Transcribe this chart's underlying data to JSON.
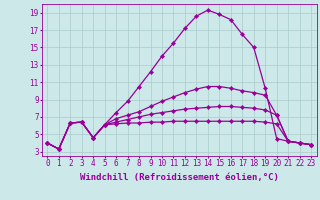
{
  "background_color": "#cce8e8",
  "grid_color": "#aacccc",
  "line_color": "#990099",
  "marker": "D",
  "markersize": 2.2,
  "linewidth": 0.9,
  "xlabel": "Windchill (Refroidissement éolien,°C)",
  "xlabel_fontsize": 6.5,
  "tick_fontsize": 5.5,
  "ylabel_ticks": [
    3,
    5,
    7,
    9,
    11,
    13,
    15,
    17,
    19
  ],
  "xlabel_ticks": [
    0,
    1,
    2,
    3,
    4,
    5,
    6,
    7,
    8,
    9,
    10,
    11,
    12,
    13,
    14,
    15,
    16,
    17,
    18,
    19,
    20,
    21,
    22,
    23
  ],
  "ylim": [
    2.5,
    20.0
  ],
  "xlim": [
    -0.5,
    23.5
  ],
  "lines": [
    [
      4.0,
      3.3,
      6.3,
      6.4,
      4.6,
      6.1,
      7.5,
      8.8,
      10.5,
      12.2,
      14.0,
      15.5,
      17.2,
      18.6,
      19.3,
      18.8,
      18.2,
      16.5,
      15.0,
      10.3,
      4.5,
      4.2,
      4.0,
      3.8
    ],
    [
      4.0,
      3.3,
      6.3,
      6.4,
      4.6,
      6.1,
      6.8,
      7.2,
      7.6,
      8.2,
      8.8,
      9.3,
      9.8,
      10.2,
      10.5,
      10.5,
      10.3,
      10.0,
      9.8,
      9.5,
      7.2,
      4.2,
      4.0,
      3.8
    ],
    [
      4.0,
      3.3,
      6.3,
      6.4,
      4.6,
      6.1,
      6.4,
      6.7,
      7.0,
      7.3,
      7.5,
      7.7,
      7.9,
      8.0,
      8.1,
      8.2,
      8.2,
      8.1,
      8.0,
      7.8,
      7.2,
      4.2,
      4.0,
      3.8
    ],
    [
      4.0,
      3.3,
      6.3,
      6.4,
      4.6,
      6.1,
      6.2,
      6.3,
      6.3,
      6.4,
      6.4,
      6.5,
      6.5,
      6.5,
      6.5,
      6.5,
      6.5,
      6.5,
      6.5,
      6.4,
      6.2,
      4.2,
      4.0,
      3.8
    ]
  ]
}
